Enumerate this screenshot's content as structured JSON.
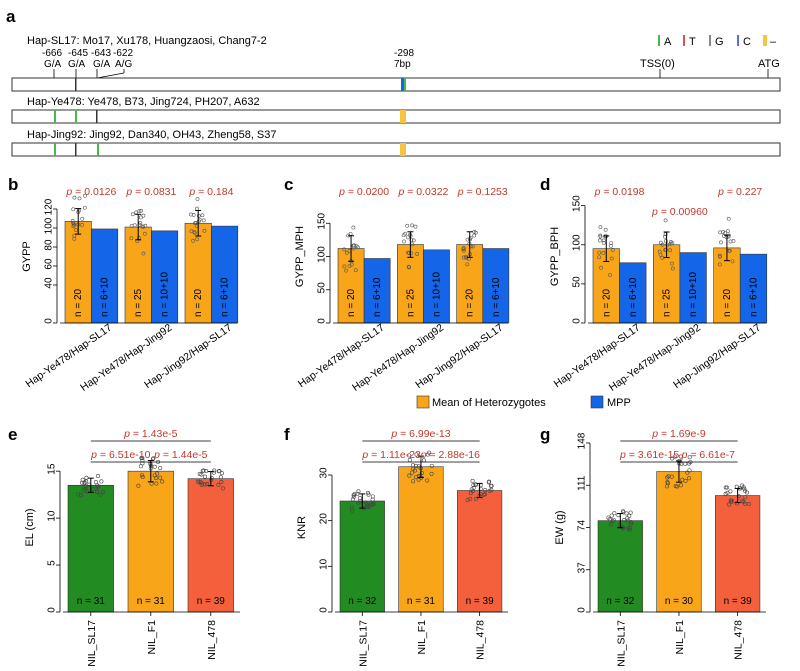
{
  "colors": {
    "A": "#49b84a",
    "T": "#d9534f",
    "G": "#888888",
    "C": "#5b6fd6",
    "indel": "#f5c542",
    "orange": "#f9a51a",
    "blue": "#1565e8",
    "green": "#228b22",
    "red": "#f4603c",
    "pval": "#c0392b"
  },
  "panel_a": {
    "letter": "a",
    "haplotypes": [
      {
        "label": "Hap-SL17: Mo17, Xu178, Huangzaosi, Chang7-2"
      },
      {
        "label": "Hap-Ye478: Ye478, B73, Jing724, PH207, A632"
      },
      {
        "label": "Hap-Jing92: Jing92, Dan340, OH43, Zheng58, S37"
      }
    ],
    "sites": [
      {
        "pos": "-666",
        "alleles": "G/A"
      },
      {
        "pos": "-645",
        "alleles": "G/A"
      },
      {
        "pos": "-643",
        "alleles": "G/A"
      },
      {
        "pos": "-622",
        "alleles": "A/G"
      },
      {
        "pos": "-298",
        "alleles": "7bp"
      }
    ],
    "tss": "TSS(0)",
    "atg": "ATG",
    "legend": [
      {
        "key": "A",
        "label": "A"
      },
      {
        "key": "T",
        "label": "T"
      },
      {
        "key": "G",
        "label": "G"
      },
      {
        "key": "C",
        "label": "C"
      },
      {
        "key": "indel",
        "label": "–"
      }
    ]
  },
  "legend_bottom": {
    "het": "Mean of Heterozygotes",
    "mpp": "MPP"
  },
  "chart_data": [
    {
      "letter": "b",
      "type": "bar",
      "ylabel": "GYPP",
      "ylim": [
        0,
        140
      ],
      "yticks": [
        0,
        40,
        60,
        80,
        100,
        120
      ],
      "categories": [
        "Hap-Ye478/Hap-SL17",
        "Hap-Ye478/Hap-Jing92",
        "Hap-Jing92/Hap-SL17"
      ],
      "series": [
        {
          "name": "Mean of Heterozygotes",
          "values": [
            107,
            101,
            105
          ]
        },
        {
          "name": "MPP",
          "values": [
            99,
            97,
            102
          ]
        }
      ],
      "n_het": [
        "n = 20",
        "n = 25",
        "n = 20"
      ],
      "n_mpp": [
        "n = 6+10",
        "n = 10+10",
        "n = 6+10"
      ],
      "pvalues": [
        [
          "p = 0.0126",
          "0.0126"
        ],
        [
          "p = 0.0831",
          "0.0831"
        ],
        [
          "p = 0.184",
          "0.184"
        ]
      ]
    },
    {
      "letter": "c",
      "type": "bar",
      "ylabel": "GYPP_MPH",
      "ylim": [
        0,
        200
      ],
      "yticks": [
        0,
        50,
        100,
        150
      ],
      "categories": [
        "Hap-Ye478/Hap-SL17",
        "Hap-Ye478/Hap-Jing92",
        "Hap-Jing92/Hap-SL17"
      ],
      "series": [
        {
          "name": "Mean of Heterozygotes",
          "values": [
            112,
            118,
            118
          ]
        },
        {
          "name": "MPP",
          "values": [
            97,
            110,
            112
          ]
        }
      ],
      "n_het": [
        "n = 20",
        "n = 25",
        "n = 20"
      ],
      "n_mpp": [
        "n = 6+10",
        "n = 10+10",
        "n = 6+10"
      ],
      "pvalues": [
        [
          "p = 0.0200",
          "0.0200"
        ],
        [
          "p = 0.0322",
          "0.0322"
        ],
        [
          "p = 0.1253",
          "0.1253"
        ]
      ]
    },
    {
      "letter": "d",
      "type": "bar",
      "ylabel": "GYPP_BPH",
      "ylim": [
        0,
        170
      ],
      "yticks": [
        0,
        50,
        100,
        150
      ],
      "categories": [
        "Hap-Ye478/Hap-SL17",
        "Hap-Ye478/Hap-Jing92",
        "Hap-Jing92/Hap-SL17"
      ],
      "series": [
        {
          "name": "Mean of Heterozygotes",
          "values": [
            95,
            100,
            96
          ]
        },
        {
          "name": "MPP",
          "values": [
            77,
            90,
            88
          ]
        }
      ],
      "n_het": [
        "n = 20",
        "n = 25",
        "n = 20"
      ],
      "n_mpp": [
        "n = 6+10",
        "n = 10+10",
        "n = 6+10"
      ],
      "pvalues": [
        [
          "p = 0.0198",
          "0.0198"
        ],
        [
          "p = 0.00960",
          "0.00960"
        ],
        [
          "p = 0.227",
          "0.227"
        ]
      ]
    },
    {
      "letter": "e",
      "type": "bar",
      "ylabel": "EL (cm)",
      "ylim": [
        0,
        18
      ],
      "yticks": [
        0,
        5,
        10,
        15
      ],
      "categories": [
        "NIL_SL17",
        "NIL_F1",
        "NIL_478"
      ],
      "values": [
        13.5,
        15.0,
        14.2
      ],
      "n": [
        "n = 31",
        "n = 31",
        "n = 39"
      ],
      "comparisons": [
        {
          "a": 0,
          "b": 1,
          "p": "6.51e-10",
          "level": 1
        },
        {
          "a": 1,
          "b": 2,
          "p": "1.44e-5",
          "level": 1
        },
        {
          "a": 0,
          "b": 2,
          "p": "1.43e-5",
          "level": 2
        }
      ]
    },
    {
      "letter": "f",
      "type": "bar",
      "ylabel": "KNR",
      "ylim": [
        0,
        37
      ],
      "yticks": [
        0,
        10,
        20,
        30
      ],
      "categories": [
        "NIL_SL17",
        "NIL_F1",
        "NIL_478"
      ],
      "values": [
        24.3,
        31.8,
        26.6
      ],
      "n": [
        "n = 32",
        "n = 31",
        "n = 39"
      ],
      "comparisons": [
        {
          "a": 0,
          "b": 1,
          "p": "1.11e-23",
          "level": 1
        },
        {
          "a": 1,
          "b": 2,
          "p": "2.88e-16",
          "level": 1
        },
        {
          "a": 0,
          "b": 2,
          "p": "6.99e-13",
          "level": 2
        }
      ]
    },
    {
      "letter": "g",
      "type": "bar",
      "ylabel": "EW (g)",
      "ylim": [
        0,
        148
      ],
      "yticks": [
        0,
        37,
        74,
        111,
        148
      ],
      "categories": [
        "NIL_SL17",
        "NIL_F1",
        "NIL_478"
      ],
      "values": [
        80,
        123,
        102
      ],
      "n": [
        "n = 32",
        "n = 30",
        "n = 39"
      ],
      "comparisons": [
        {
          "a": 0,
          "b": 1,
          "p": "3.61e-15",
          "level": 1
        },
        {
          "a": 1,
          "b": 2,
          "p": "6.61e-7",
          "level": 1
        },
        {
          "a": 0,
          "b": 2,
          "p": "1.69e-9",
          "level": 2
        }
      ]
    }
  ]
}
